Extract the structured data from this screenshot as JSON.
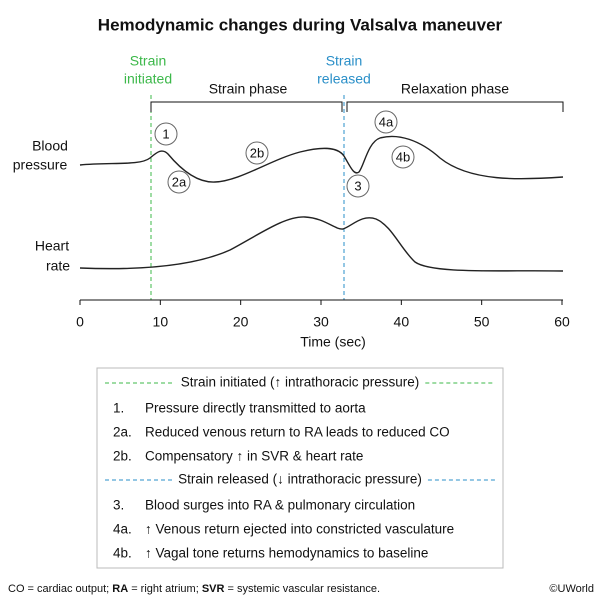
{
  "title": "Hemodynamic changes during Valsalva maneuver",
  "markers": [
    {
      "lines": [
        "Strain",
        "initiated"
      ]
    },
    {
      "lines": [
        "Strain",
        "released"
      ]
    }
  ],
  "phases": [
    "Strain phase",
    "Relaxation phase"
  ],
  "rows": [
    {
      "lines": [
        "Blood",
        "pressure"
      ]
    },
    {
      "lines": [
        "Heart",
        "rate"
      ]
    }
  ],
  "callouts": [
    "1",
    "2a",
    "2b",
    "3",
    "4a",
    "4b"
  ],
  "x_axis": {
    "title": "Time (sec)",
    "ticks": [
      0,
      10,
      20,
      30,
      40,
      50,
      60
    ]
  },
  "legend": [
    {
      "header": "Strain initiated (↑ intrathoracic pressure)",
      "color": "#3cb84a",
      "items": [
        {
          "num": "1.",
          "text": "Pressure directly transmitted to aorta"
        },
        {
          "num": "2a.",
          "text": "Reduced venous return to RA leads to reduced CO"
        },
        {
          "num": "2b.",
          "text": "Compensatory ↑ in SVR & heart rate"
        }
      ]
    },
    {
      "header": "Strain released (↓ intrathoracic pressure)",
      "color": "#2a8fc8",
      "items": [
        {
          "num": "3.",
          "text": "Blood surges into RA & pulmonary circulation"
        },
        {
          "num": "4a.",
          "text": "↑ Venous return ejected into constricted vasculature"
        },
        {
          "num": "4b.",
          "text": "↑ Vagal tone returns hemodynamics to baseline"
        }
      ]
    }
  ],
  "footnote": [
    {
      "text": "CO = cardiac output; ",
      "bold": false
    },
    {
      "text": "RA",
      "bold": true
    },
    {
      "text": " = right atrium; ",
      "bold": false
    },
    {
      "text": "SVR",
      "bold": true
    },
    {
      "text": " = systemic vascular resistance.",
      "bold": false
    }
  ],
  "copyright": "©UWorld"
}
